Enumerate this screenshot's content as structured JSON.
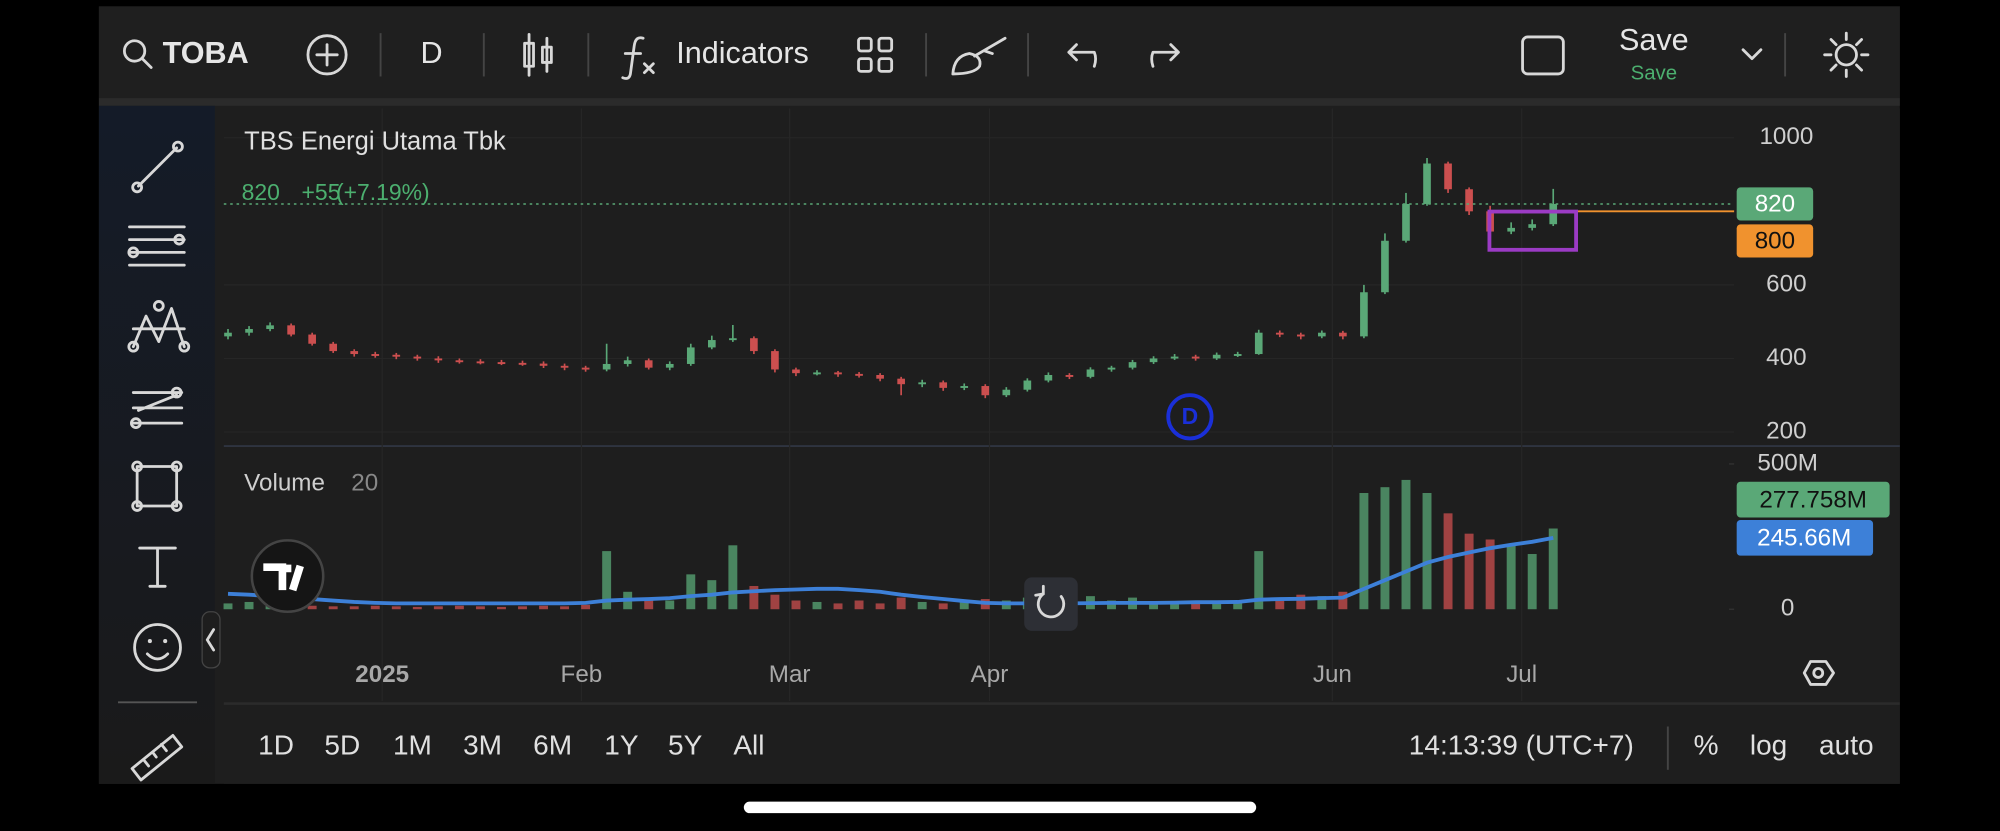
{
  "toolbar": {
    "symbol": "TOBA",
    "interval": "D",
    "indicators": "Indicators",
    "save": "Save",
    "save_sub": "Save"
  },
  "chart_data": [
    {
      "type": "candlestick",
      "title": "TBS Energi Utama Tbk",
      "change_label": "+55",
      "change_pct_label": "(+7.19%)",
      "open": [
        460,
        470,
        480,
        490,
        465,
        440,
        420,
        412,
        410,
        405,
        400,
        395,
        392,
        390,
        388,
        386,
        380,
        375,
        370,
        385,
        395,
        375,
        385,
        430,
        450,
        455,
        420,
        370,
        360,
        362,
        358,
        355,
        345,
        330,
        335,
        320,
        325,
        300,
        315,
        340,
        355,
        350,
        370,
        375,
        390,
        400,
        405,
        400,
        410,
        412,
        470,
        465,
        460,
        470,
        460,
        580,
        720,
        820,
        930,
        860,
        800,
        745,
        755,
        765
      ],
      "high": [
        480,
        488,
        498,
        495,
        470,
        445,
        425,
        418,
        415,
        410,
        406,
        400,
        398,
        396,
        394,
        392,
        386,
        380,
        440,
        405,
        400,
        392,
        440,
        462,
        491,
        460,
        425,
        375,
        368,
        366,
        363,
        360,
        350,
        342,
        340,
        332,
        330,
        322,
        346,
        362,
        360,
        376,
        380,
        396,
        406,
        412,
        410,
        416,
        418,
        478,
        476,
        470,
        476,
        475,
        600,
        740,
        850,
        945,
        935,
        865,
        815,
        770,
        778,
        861
      ],
      "low": [
        452,
        462,
        474,
        460,
        435,
        415,
        405,
        402,
        398,
        394,
        388,
        386,
        384,
        382,
        380,
        374,
        368,
        364,
        365,
        378,
        370,
        368,
        380,
        425,
        445,
        412,
        362,
        352,
        354,
        350,
        348,
        338,
        300,
        322,
        312,
        314,
        292,
        295,
        310,
        335,
        344,
        346,
        364,
        370,
        385,
        396,
        394,
        396,
        404,
        410,
        458,
        452,
        455,
        452,
        455,
        575,
        715,
        815,
        850,
        790,
        740,
        738,
        748,
        760
      ],
      "close": [
        470,
        480,
        490,
        465,
        440,
        420,
        412,
        410,
        405,
        400,
        395,
        392,
        390,
        388,
        386,
        380,
        375,
        370,
        385,
        395,
        375,
        385,
        430,
        450,
        455,
        420,
        370,
        360,
        362,
        358,
        355,
        345,
        330,
        335,
        320,
        325,
        300,
        315,
        340,
        355,
        350,
        370,
        375,
        390,
        400,
        405,
        400,
        410,
        412,
        470,
        465,
        460,
        470,
        460,
        580,
        720,
        820,
        930,
        860,
        800,
        745,
        755,
        765,
        820
      ],
      "up_color": "#5aa877",
      "down_color": "#cc4f4f",
      "line_level": 800,
      "line_color": "#f0922e",
      "ylim": [
        160,
        1080
      ],
      "yticks": [
        200,
        400,
        600,
        1000
      ],
      "xlim": [
        -0.2,
        71.6
      ],
      "xticks": [
        {
          "value": 7.33,
          "label": "2025"
        },
        {
          "value": 16.8,
          "label": "Feb"
        },
        {
          "value": 26.7,
          "label": "Mar"
        },
        {
          "value": 36.2,
          "label": "Apr"
        },
        {
          "value": 52.5,
          "label": "Jun"
        },
        {
          "value": 61.5,
          "label": "Jul"
        }
      ],
      "grid": true
    },
    {
      "type": "bar",
      "title": "Volume",
      "ma_period": 20,
      "values": [
        20000000.0,
        25000000.0,
        18000000.0,
        15000000.0,
        12000000.0,
        10000000.0,
        10000000.0,
        12000000.0,
        10000000.0,
        8000000.0,
        10000000.0,
        12000000.0,
        10000000.0,
        8000000.0,
        10000000.0,
        12000000.0,
        10000000.0,
        15000000.0,
        200000000.0,
        60000000.0,
        40000000.0,
        30000000.0,
        120000000.0,
        100000000.0,
        220000000.0,
        80000000.0,
        50000000.0,
        30000000.0,
        25000000.0,
        20000000.0,
        30000000.0,
        20000000.0,
        40000000.0,
        25000000.0,
        20000000.0,
        30000000.0,
        35000000.0,
        30000000.0,
        40000000.0,
        35000000.0,
        25000000.0,
        45000000.0,
        30000000.0,
        40000000.0,
        25000000.0,
        20000000.0,
        25000000.0,
        20000000.0,
        25000000.0,
        200000000.0,
        40000000.0,
        50000000.0,
        45000000.0,
        60000000.0,
        400000000.0,
        420000000.0,
        445000000.0,
        400000000.0,
        330000000.0,
        260000000.0,
        240000000.0,
        220000000.0,
        190000000.0,
        277758000.0
      ],
      "last_value_label": "277.758M",
      "ma_values": [
        53000000.0,
        50000000.0,
        45000000.0,
        40000000.0,
        35000000.0,
        30000000.0,
        25000000.0,
        22000000.0,
        20000000.0,
        20000000.0,
        20000000.0,
        20000000.0,
        20000000.0,
        20000000.0,
        20000000.0,
        20000000.0,
        20000000.0,
        22000000.0,
        30000000.0,
        33000000.0,
        35000000.0,
        38000000.0,
        45000000.0,
        50000000.0,
        58000000.0,
        62000000.0,
        66000000.0,
        68000000.0,
        70000000.0,
        70000000.0,
        66000000.0,
        60000000.0,
        50000000.0,
        42000000.0,
        35000000.0,
        28000000.0,
        22000000.0,
        20000000.0,
        20000000.0,
        20000000.0,
        20000000.0,
        21000000.0,
        22000000.0,
        22000000.0,
        22000000.0,
        23000000.0,
        24000000.0,
        24000000.0,
        25000000.0,
        33000000.0,
        35000000.0,
        36000000.0,
        38000000.0,
        40000000.0,
        70000000.0,
        100000000.0,
        130000000.0,
        160000000.0,
        180000000.0,
        195000000.0,
        210000000.0,
        222000000.0,
        232000000.0,
        245660000.0
      ],
      "ma_last_label": "245.66M",
      "ma_color": "#3d80d8",
      "ylim": [
        0,
        550000000.0
      ],
      "yticks": [
        0,
        {
          "value": 500000000.0,
          "label": "500M"
        }
      ]
    }
  ],
  "range_buttons": [
    "1D",
    "5D",
    "1M",
    "3M",
    "6M",
    "1Y",
    "5Y",
    "All"
  ],
  "clock": "14:13:39 (UTC+7)",
  "scale_buttons": [
    "%",
    "log",
    "auto"
  ]
}
